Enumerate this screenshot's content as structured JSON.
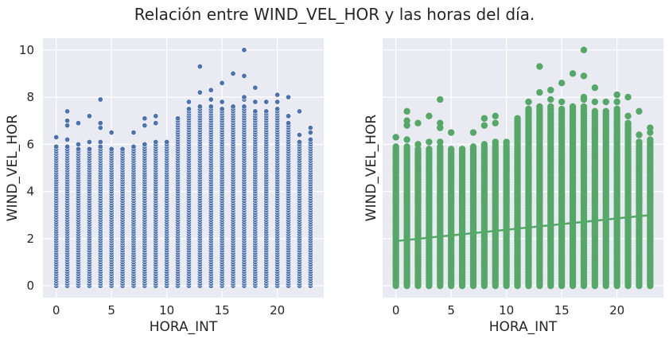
{
  "title": "Relación entre WIND_VEL_HOR y las horas del día.",
  "chart_data": [
    {
      "type": "scatter",
      "xlabel": "HORA_INT",
      "ylabel": "WIND_VEL_HOR",
      "xlim": [
        -1.2,
        24.2
      ],
      "ylim": [
        -0.5,
        10.5
      ],
      "x_ticks": [
        "0",
        "5",
        "10",
        "15",
        "20"
      ],
      "y_ticks": [
        "0",
        "2",
        "4",
        "6",
        "8",
        "10"
      ],
      "grid": true,
      "color": "#4c72b0",
      "hours": [
        0,
        1,
        2,
        3,
        4,
        5,
        6,
        7,
        8,
        9,
        10,
        11,
        12,
        13,
        14,
        15,
        16,
        17,
        18,
        19,
        20,
        21,
        22,
        23
      ],
      "dense_max": [
        5.9,
        5.9,
        5.8,
        5.8,
        5.9,
        5.8,
        5.8,
        5.9,
        6.0,
        6.1,
        6.1,
        7.1,
        7.5,
        7.6,
        7.6,
        7.5,
        7.6,
        7.6,
        7.4,
        7.4,
        7.5,
        6.9,
        6.1,
        6.2
      ],
      "outliers": [
        {
          "x": 0,
          "y": 6.3
        },
        {
          "x": 1,
          "y": 6.2
        },
        {
          "x": 1,
          "y": 6.8
        },
        {
          "x": 1,
          "y": 7.0
        },
        {
          "x": 1,
          "y": 7.4
        },
        {
          "x": 2,
          "y": 6.0
        },
        {
          "x": 2,
          "y": 6.9
        },
        {
          "x": 3,
          "y": 6.1
        },
        {
          "x": 3,
          "y": 7.2
        },
        {
          "x": 4,
          "y": 6.1
        },
        {
          "x": 4,
          "y": 6.7
        },
        {
          "x": 4,
          "y": 6.9
        },
        {
          "x": 4,
          "y": 7.9
        },
        {
          "x": 5,
          "y": 6.5
        },
        {
          "x": 7,
          "y": 6.5
        },
        {
          "x": 8,
          "y": 6.8
        },
        {
          "x": 8,
          "y": 7.1
        },
        {
          "x": 9,
          "y": 6.9
        },
        {
          "x": 9,
          "y": 7.2
        },
        {
          "x": 12,
          "y": 7.8
        },
        {
          "x": 13,
          "y": 8.2
        },
        {
          "x": 13,
          "y": 9.3
        },
        {
          "x": 14,
          "y": 7.9
        },
        {
          "x": 14,
          "y": 8.3
        },
        {
          "x": 15,
          "y": 7.8
        },
        {
          "x": 15,
          "y": 8.6
        },
        {
          "x": 16,
          "y": 9.0
        },
        {
          "x": 17,
          "y": 7.9
        },
        {
          "x": 17,
          "y": 8.0
        },
        {
          "x": 17,
          "y": 8.9
        },
        {
          "x": 17,
          "y": 10.0
        },
        {
          "x": 18,
          "y": 7.8
        },
        {
          "x": 18,
          "y": 8.4
        },
        {
          "x": 19,
          "y": 7.8
        },
        {
          "x": 20,
          "y": 7.8
        },
        {
          "x": 20,
          "y": 8.1
        },
        {
          "x": 21,
          "y": 7.2
        },
        {
          "x": 21,
          "y": 8.0
        },
        {
          "x": 22,
          "y": 6.4
        },
        {
          "x": 22,
          "y": 7.4
        },
        {
          "x": 23,
          "y": 6.5
        },
        {
          "x": 23,
          "y": 6.7
        }
      ]
    },
    {
      "type": "scatter",
      "xlabel": "HORA_INT",
      "ylabel": "WIND_VEL_HOR",
      "xlim": [
        -1.2,
        24.2
      ],
      "ylim": [
        -0.5,
        10.5
      ],
      "x_ticks": [
        "0",
        "5",
        "10",
        "15",
        "20"
      ],
      "y_ticks": [],
      "grid": true,
      "color": "#55a868",
      "regression_line": {
        "x": [
          0,
          23
        ],
        "y": [
          1.9,
          3.0
        ]
      },
      "hours": [
        0,
        1,
        2,
        3,
        4,
        5,
        6,
        7,
        8,
        9,
        10,
        11,
        12,
        13,
        14,
        15,
        16,
        17,
        18,
        19,
        20,
        21,
        22,
        23
      ],
      "dense_max": [
        5.9,
        5.9,
        5.8,
        5.8,
        5.9,
        5.8,
        5.8,
        5.9,
        6.0,
        6.1,
        6.1,
        7.1,
        7.5,
        7.6,
        7.6,
        7.5,
        7.6,
        7.6,
        7.4,
        7.4,
        7.5,
        6.9,
        6.1,
        6.2
      ],
      "outliers": [
        {
          "x": 0,
          "y": 6.3
        },
        {
          "x": 1,
          "y": 6.2
        },
        {
          "x": 1,
          "y": 6.8
        },
        {
          "x": 1,
          "y": 7.0
        },
        {
          "x": 1,
          "y": 7.4
        },
        {
          "x": 2,
          "y": 6.0
        },
        {
          "x": 2,
          "y": 6.9
        },
        {
          "x": 3,
          "y": 6.1
        },
        {
          "x": 3,
          "y": 7.2
        },
        {
          "x": 4,
          "y": 6.1
        },
        {
          "x": 4,
          "y": 6.7
        },
        {
          "x": 4,
          "y": 6.9
        },
        {
          "x": 4,
          "y": 7.9
        },
        {
          "x": 5,
          "y": 6.5
        },
        {
          "x": 7,
          "y": 6.5
        },
        {
          "x": 8,
          "y": 6.8
        },
        {
          "x": 8,
          "y": 7.1
        },
        {
          "x": 9,
          "y": 6.9
        },
        {
          "x": 9,
          "y": 7.2
        },
        {
          "x": 12,
          "y": 7.8
        },
        {
          "x": 13,
          "y": 8.2
        },
        {
          "x": 13,
          "y": 9.3
        },
        {
          "x": 14,
          "y": 7.9
        },
        {
          "x": 14,
          "y": 8.3
        },
        {
          "x": 15,
          "y": 7.8
        },
        {
          "x": 15,
          "y": 8.6
        },
        {
          "x": 16,
          "y": 9.0
        },
        {
          "x": 17,
          "y": 7.9
        },
        {
          "x": 17,
          "y": 8.0
        },
        {
          "x": 17,
          "y": 8.9
        },
        {
          "x": 17,
          "y": 10.0
        },
        {
          "x": 18,
          "y": 7.8
        },
        {
          "x": 18,
          "y": 8.4
        },
        {
          "x": 19,
          "y": 7.8
        },
        {
          "x": 20,
          "y": 7.8
        },
        {
          "x": 20,
          "y": 8.1
        },
        {
          "x": 21,
          "y": 7.2
        },
        {
          "x": 21,
          "y": 8.0
        },
        {
          "x": 22,
          "y": 6.4
        },
        {
          "x": 22,
          "y": 7.4
        },
        {
          "x": 23,
          "y": 6.5
        },
        {
          "x": 23,
          "y": 6.7
        }
      ]
    }
  ]
}
